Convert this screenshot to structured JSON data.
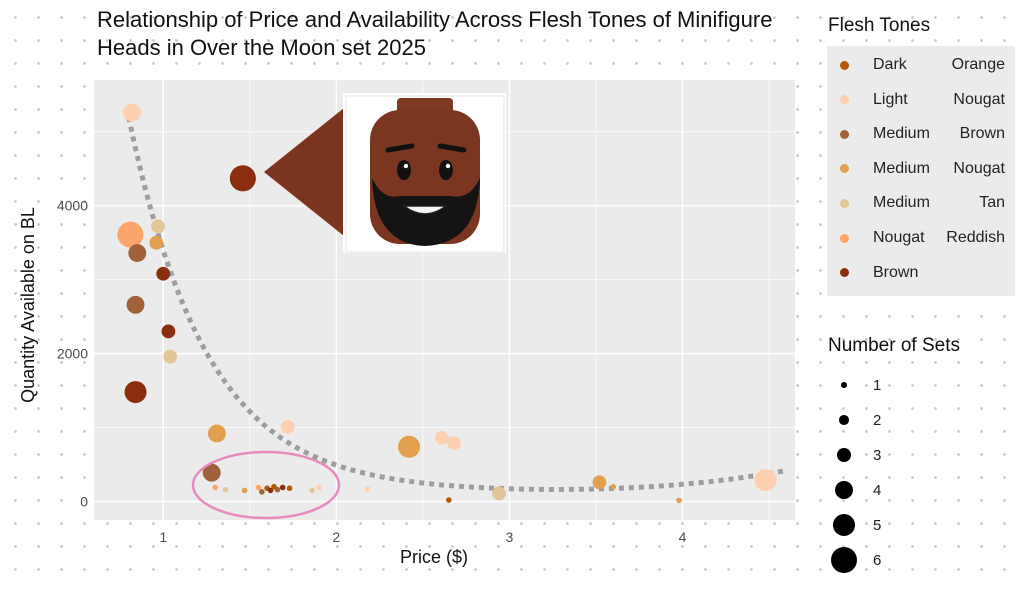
{
  "chart_data": {
    "type": "scatter",
    "title": "Relationship of Price and Availability Across Flesh Tones of Minifigure Heads in Over the Moon set 2025",
    "xlabel": "Price ($)",
    "ylabel": "Quantity Available on BL",
    "xlim": [
      0.6,
      4.65
    ],
    "ylim": [
      -250,
      5700
    ],
    "x_ticks": [
      "1",
      "2",
      "3",
      "4"
    ],
    "y_ticks": [
      "0",
      "2000",
      "4000"
    ],
    "grid": true,
    "legend_position": "right",
    "color_legend": {
      "title": "Flesh Tones",
      "entries": [
        {
          "label": "Dark Orange",
          "color": "#b35806"
        },
        {
          "label": "Light Nougat",
          "color": "#fdd0b1"
        },
        {
          "label": "Medium Brown",
          "color": "#a0623a"
        },
        {
          "label": "Medium Nougat",
          "color": "#e0a050"
        },
        {
          "label": "Medium Tan",
          "color": "#e0c699"
        },
        {
          "label": "Nougat Reddish",
          "color": "#fba56a"
        },
        {
          "label": "Brown",
          "color": "#8b2e0f"
        }
      ]
    },
    "size_legend": {
      "title": "Number of Sets",
      "entries": [
        "1",
        "2",
        "3",
        "4",
        "5",
        "6"
      ]
    },
    "trend": "curved dotted trend line",
    "highlight": "ellipse around cluster of low-priced, low-availability heads",
    "points": [
      {
        "x": 0.82,
        "y": 5260,
        "tone": "Light Nougat",
        "sets": 4
      },
      {
        "x": 0.97,
        "y": 3720,
        "tone": "Medium Tan",
        "sets": 3
      },
      {
        "x": 0.81,
        "y": 3610,
        "tone": "Nougat Reddish",
        "sets": 6
      },
      {
        "x": 0.96,
        "y": 3500,
        "tone": "Medium Nougat",
        "sets": 3
      },
      {
        "x": 0.85,
        "y": 3360,
        "tone": "Medium Brown",
        "sets": 4
      },
      {
        "x": 1.0,
        "y": 3080,
        "tone": "Brown",
        "sets": 3
      },
      {
        "x": 0.84,
        "y": 2660,
        "tone": "Medium Brown",
        "sets": 4
      },
      {
        "x": 1.03,
        "y": 2300,
        "tone": "Brown",
        "sets": 3
      },
      {
        "x": 1.04,
        "y": 1960,
        "tone": "Medium Tan",
        "sets": 3
      },
      {
        "x": 0.84,
        "y": 1480,
        "tone": "Brown",
        "sets": 5
      },
      {
        "x": 1.46,
        "y": 4370,
        "tone": "Brown",
        "sets": 6
      },
      {
        "x": 1.31,
        "y": 920,
        "tone": "Medium Nougat",
        "sets": 4
      },
      {
        "x": 1.72,
        "y": 1010,
        "tone": "Light Nougat",
        "sets": 3
      },
      {
        "x": 1.28,
        "y": 390,
        "tone": "Medium Brown",
        "sets": 4
      },
      {
        "x": 2.42,
        "y": 740,
        "tone": "Medium Nougat",
        "sets": 5
      },
      {
        "x": 2.61,
        "y": 860,
        "tone": "Light Nougat",
        "sets": 3
      },
      {
        "x": 2.68,
        "y": 790,
        "tone": "Light Nougat",
        "sets": 3
      },
      {
        "x": 2.94,
        "y": 110,
        "tone": "Medium Tan",
        "sets": 3
      },
      {
        "x": 2.65,
        "y": 20,
        "tone": "Dark Orange",
        "sets": 1
      },
      {
        "x": 3.52,
        "y": 260,
        "tone": "Medium Nougat",
        "sets": 3
      },
      {
        "x": 3.6,
        "y": 200,
        "tone": "Medium Nougat",
        "sets": 1
      },
      {
        "x": 3.98,
        "y": 15,
        "tone": "Medium Nougat",
        "sets": 1
      },
      {
        "x": 4.48,
        "y": 290,
        "tone": "Light Nougat",
        "sets": 5
      },
      {
        "x": 2.18,
        "y": 170,
        "tone": "Light Nougat",
        "sets": 1
      },
      {
        "x": 1.3,
        "y": 190,
        "tone": "Nougat Reddish",
        "sets": 1
      },
      {
        "x": 1.36,
        "y": 160,
        "tone": "Medium Tan",
        "sets": 1
      },
      {
        "x": 1.47,
        "y": 150,
        "tone": "Medium Nougat",
        "sets": 1
      },
      {
        "x": 1.55,
        "y": 190,
        "tone": "Nougat Reddish",
        "sets": 1
      },
      {
        "x": 1.57,
        "y": 130,
        "tone": "Medium Brown",
        "sets": 1
      },
      {
        "x": 1.6,
        "y": 180,
        "tone": "Dark Orange",
        "sets": 1
      },
      {
        "x": 1.62,
        "y": 150,
        "tone": "Brown",
        "sets": 1
      },
      {
        "x": 1.64,
        "y": 200,
        "tone": "Dark Orange",
        "sets": 1
      },
      {
        "x": 1.66,
        "y": 160,
        "tone": "Medium Brown",
        "sets": 1
      },
      {
        "x": 1.69,
        "y": 190,
        "tone": "Brown",
        "sets": 1
      },
      {
        "x": 1.73,
        "y": 180,
        "tone": "Dark Orange",
        "sets": 1
      },
      {
        "x": 1.86,
        "y": 150,
        "tone": "Medium Tan",
        "sets": 1
      },
      {
        "x": 1.9,
        "y": 190,
        "tone": "Light Nougat",
        "sets": 1
      }
    ]
  }
}
